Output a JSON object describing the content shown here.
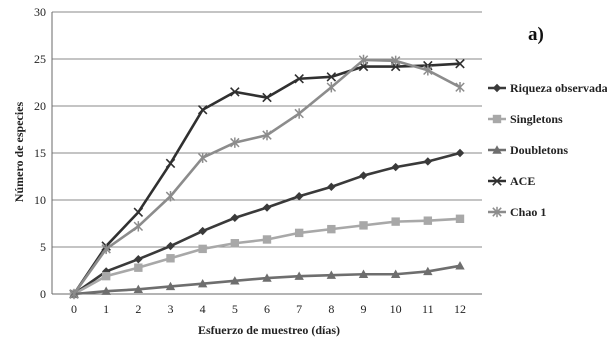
{
  "chart_data": {
    "type": "line",
    "panel_label": "a)",
    "xlabel": "Esfuerzo de muestreo (días)",
    "ylabel": "Número de especies",
    "x": [
      0,
      1,
      2,
      3,
      4,
      5,
      6,
      7,
      8,
      9,
      10,
      11,
      12
    ],
    "xlim": [
      0,
      12
    ],
    "ylim": [
      0,
      30
    ],
    "yticks": [
      0,
      5,
      10,
      15,
      20,
      25,
      30
    ],
    "grid": "horizontal",
    "legend_position": "right",
    "series": [
      {
        "name": "Riqueza observada",
        "color": "#3a3a3a",
        "marker": "diamond",
        "values": [
          0,
          2.4,
          3.7,
          5.1,
          6.7,
          8.1,
          9.2,
          10.4,
          11.4,
          12.6,
          13.5,
          14.1,
          15.0
        ]
      },
      {
        "name": "Singletons",
        "color": "#a8a8a8",
        "marker": "square",
        "values": [
          0,
          1.9,
          2.8,
          3.8,
          4.8,
          5.4,
          5.8,
          6.5,
          6.9,
          7.3,
          7.7,
          7.8,
          8.0
        ]
      },
      {
        "name": "Doubletons",
        "color": "#6e6e6e",
        "marker": "triangle",
        "values": [
          0,
          0.3,
          0.5,
          0.8,
          1.1,
          1.4,
          1.7,
          1.9,
          2.0,
          2.1,
          2.1,
          2.4,
          3.0
        ]
      },
      {
        "name": "ACE",
        "color": "#303030",
        "marker": "x",
        "values": [
          0,
          5.1,
          8.7,
          13.9,
          19.6,
          21.5,
          20.9,
          22.9,
          23.1,
          24.2,
          24.2,
          24.3,
          24.5
        ]
      },
      {
        "name": "Chao 1",
        "color": "#8c8c8c",
        "marker": "star",
        "values": [
          0,
          4.8,
          7.2,
          10.4,
          14.5,
          16.1,
          16.9,
          19.2,
          22.0,
          24.9,
          24.8,
          23.8,
          22.0
        ]
      }
    ]
  }
}
